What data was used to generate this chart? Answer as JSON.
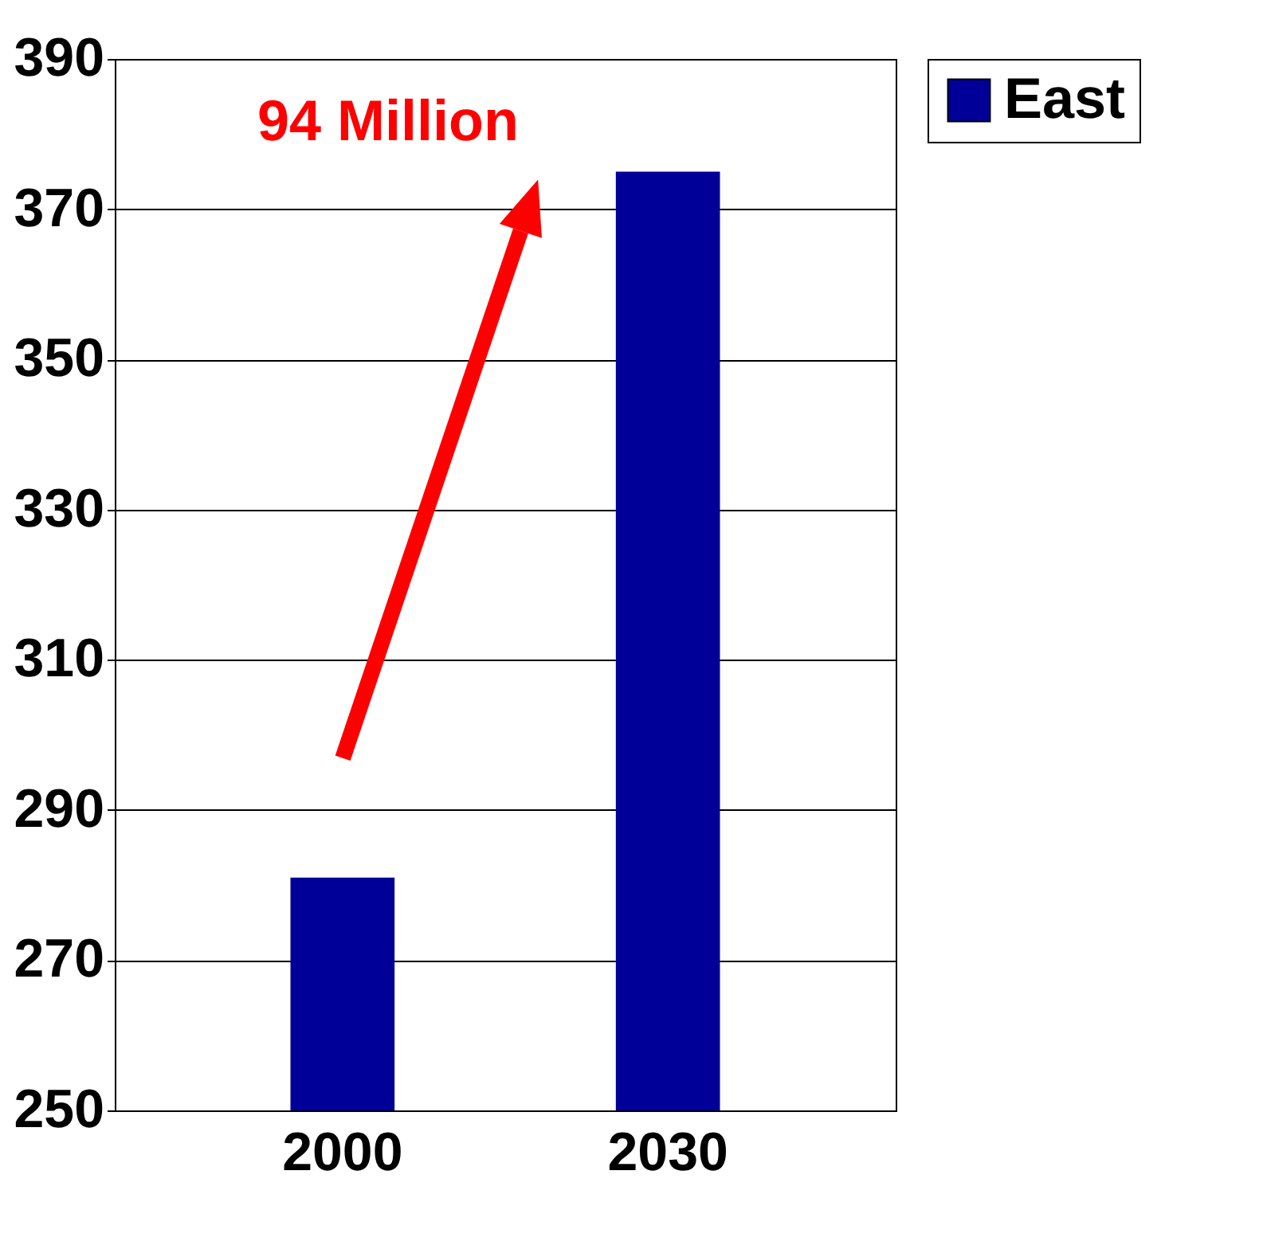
{
  "chart_data": {
    "type": "bar",
    "categories": [
      "2000",
      "2030"
    ],
    "series": [
      {
        "name": "East",
        "color": "#000099",
        "values": [
          281,
          375
        ]
      }
    ],
    "ylim": [
      250,
      390
    ],
    "yticks": [
      250,
      270,
      290,
      310,
      330,
      350,
      370,
      390
    ],
    "grid": "y",
    "legend": "right",
    "annotations": [
      "94 Million"
    ]
  }
}
